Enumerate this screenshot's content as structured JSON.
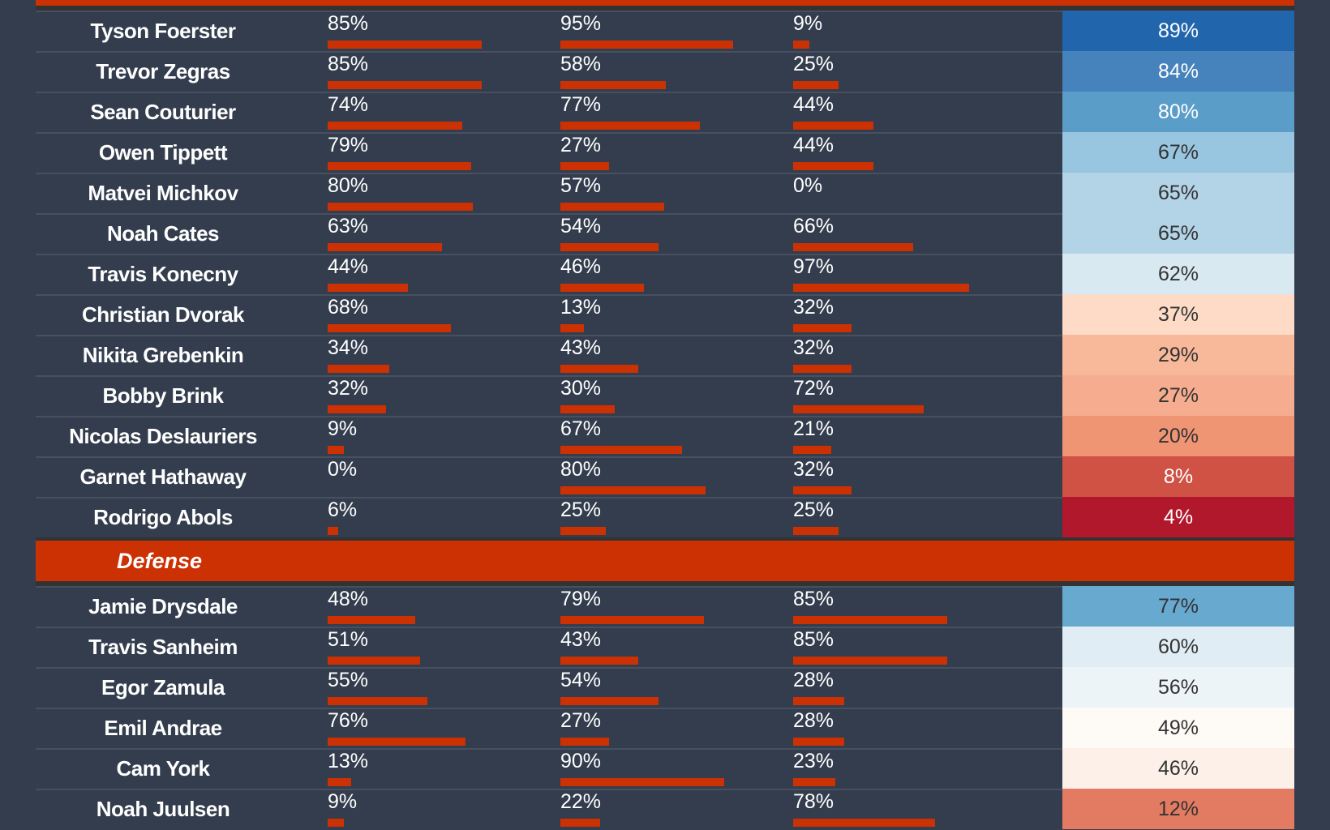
{
  "colors": {
    "accent": "#cc3104",
    "background": "#333d4d"
  },
  "forwards": [
    {
      "name": "Tyson Foerster",
      "m": [
        85,
        95,
        9
      ],
      "score": 89,
      "color": "#2166ac"
    },
    {
      "name": "Trevor Zegras",
      "m": [
        85,
        58,
        25
      ],
      "score": 84,
      "color": "#4682bb"
    },
    {
      "name": "Sean Couturier",
      "m": [
        74,
        77,
        44
      ],
      "score": 80,
      "color": "#5b9dc9"
    },
    {
      "name": "Owen Tippett",
      "m": [
        79,
        27,
        44
      ],
      "score": 67,
      "color": "#98c5df"
    },
    {
      "name": "Matvei Michkov",
      "m": [
        80,
        57,
        0
      ],
      "score": 65,
      "color": "#b3d3e7"
    },
    {
      "name": "Noah Cates",
      "m": [
        63,
        54,
        66
      ],
      "score": 65,
      "color": "#b3d3e7"
    },
    {
      "name": "Travis Konecny",
      "m": [
        44,
        46,
        97
      ],
      "score": 62,
      "color": "#d9e9f2"
    },
    {
      "name": "Christian Dvorak",
      "m": [
        68,
        13,
        32
      ],
      "score": 37,
      "color": "#fddbc6"
    },
    {
      "name": "Nikita Grebenkin",
      "m": [
        34,
        43,
        32
      ],
      "score": 29,
      "color": "#f8b99b"
    },
    {
      "name": "Bobby Brink",
      "m": [
        32,
        30,
        72
      ],
      "score": 27,
      "color": "#f6ad8f"
    },
    {
      "name": "Nicolas Deslauriers",
      "m": [
        9,
        67,
        21
      ],
      "score": 20,
      "color": "#f09574"
    },
    {
      "name": "Garnet Hathaway",
      "m": [
        0,
        80,
        32
      ],
      "score": 8,
      "color": "#cf5244"
    },
    {
      "name": "Rodrigo Abols",
      "m": [
        6,
        25,
        25
      ],
      "score": 4,
      "color": "#b2182b"
    }
  ],
  "defense_label": "Defense",
  "defense": [
    {
      "name": "Jamie Drysdale",
      "m": [
        48,
        79,
        85
      ],
      "score": 77,
      "color": "#67a9cf"
    },
    {
      "name": "Travis Sanheim",
      "m": [
        51,
        43,
        85
      ],
      "score": 60,
      "color": "#e0edf4"
    },
    {
      "name": "Egor Zamula",
      "m": [
        55,
        54,
        28
      ],
      "score": 56,
      "color": "#edf4f8"
    },
    {
      "name": "Emil Andrae",
      "m": [
        76,
        27,
        28
      ],
      "score": 49,
      "color": "#fefaf6"
    },
    {
      "name": "Cam York",
      "m": [
        13,
        90,
        23
      ],
      "score": 46,
      "color": "#fdf0e8"
    },
    {
      "name": "Noah Juulsen",
      "m": [
        9,
        22,
        78
      ],
      "score": 12,
      "color": "#e27b61"
    }
  ]
}
